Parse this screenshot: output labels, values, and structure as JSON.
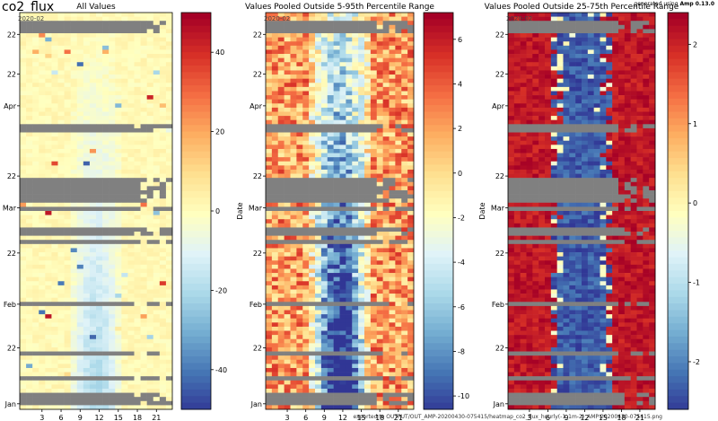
{
  "figure": {
    "title": "co2_flux",
    "footer": "exported to OUTPUT/OUT_AMP-20200430-075415/heatmap_co2_flux_hourly(-1_1m-2)_AMP-20200430-075415.png",
    "version_label": "generated using",
    "version_value": "Amp 0.13.0"
  },
  "colors": {
    "missing": "#808080",
    "colormap": [
      "#313695",
      "#4575b4",
      "#74add1",
      "#abd9e9",
      "#e0f3f8",
      "#ffffbf",
      "#fee090",
      "#fdae61",
      "#f46d43",
      "#d73027",
      "#a50026"
    ]
  },
  "chart_data": [
    {
      "type": "heatmap",
      "title": "All Values",
      "ylabel": "",
      "x_ticks": [
        "3",
        "6",
        "9",
        "12",
        "15",
        "18",
        "21"
      ],
      "y_ticks": [
        "Jan",
        "22",
        "Feb",
        "22",
        "Mar",
        "22",
        "Apr",
        "22",
        "22"
      ],
      "year_label": "2020-02",
      "colorbar": {
        "range": [
          -50,
          50
        ],
        "ticks": [
          "40",
          "20",
          "0",
          "-20",
          "-40"
        ]
      },
      "grid": false
    },
    {
      "type": "heatmap",
      "title": "Values Pooled Outside 5-95th Percentile Range",
      "ylabel": "Date",
      "x_ticks": [
        "3",
        "6",
        "9",
        "12",
        "15",
        "18",
        "21"
      ],
      "y_ticks": [
        "Jan",
        "22",
        "Feb",
        "22",
        "Mar",
        "22",
        "Apr",
        "22",
        "22"
      ],
      "year_label": "2020-02",
      "colorbar": {
        "range": [
          -10.6,
          7.2
        ],
        "ticks": [
          "6",
          "4",
          "2",
          "0",
          "-2",
          "-4",
          "-6",
          "-8",
          "-10"
        ]
      },
      "grid": false
    },
    {
      "type": "heatmap",
      "title": "Values Pooled Outside 25-75th Percentile Range",
      "ylabel": "Date",
      "x_ticks": [
        "3",
        "6",
        "9",
        "12",
        "15",
        "18",
        "21"
      ],
      "y_ticks": [
        "Jan",
        "22",
        "Feb",
        "22",
        "Mar",
        "22",
        "Apr",
        "22",
        "22"
      ],
      "year_label": "2020-02",
      "colorbar": {
        "range": [
          -2.6,
          2.4
        ],
        "ticks": [
          "2",
          "1",
          "0",
          "-1",
          "-2"
        ]
      },
      "grid": false
    }
  ]
}
